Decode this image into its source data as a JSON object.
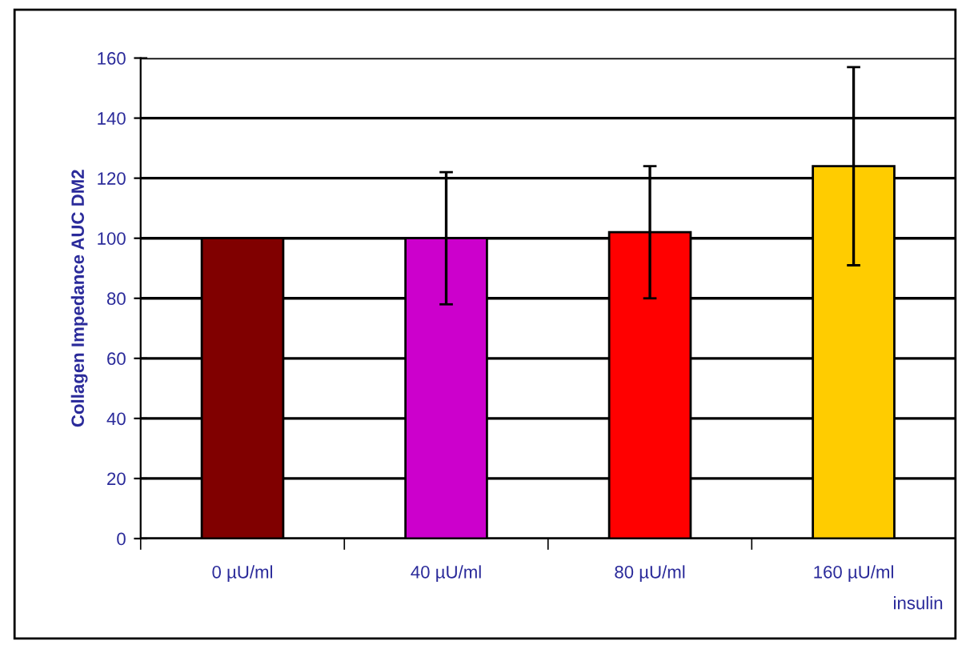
{
  "chart_data": {
    "type": "bar",
    "ylabel": "Collagen Impedance AUC DM2",
    "xlabel": "insulin",
    "categories": [
      "0 µU/ml",
      "40 µU/ml",
      "80 µU/ml",
      "160 µU/ml"
    ],
    "values": [
      100,
      100,
      102,
      124
    ],
    "errors": [
      null,
      22,
      22,
      33
    ],
    "colors": [
      "#800000",
      "#cc00cc",
      "#ff0000",
      "#ffcc00"
    ],
    "ylim": [
      0,
      160
    ],
    "yticks": [
      0,
      20,
      40,
      60,
      80,
      100,
      120,
      140,
      160
    ],
    "grid": "y"
  }
}
